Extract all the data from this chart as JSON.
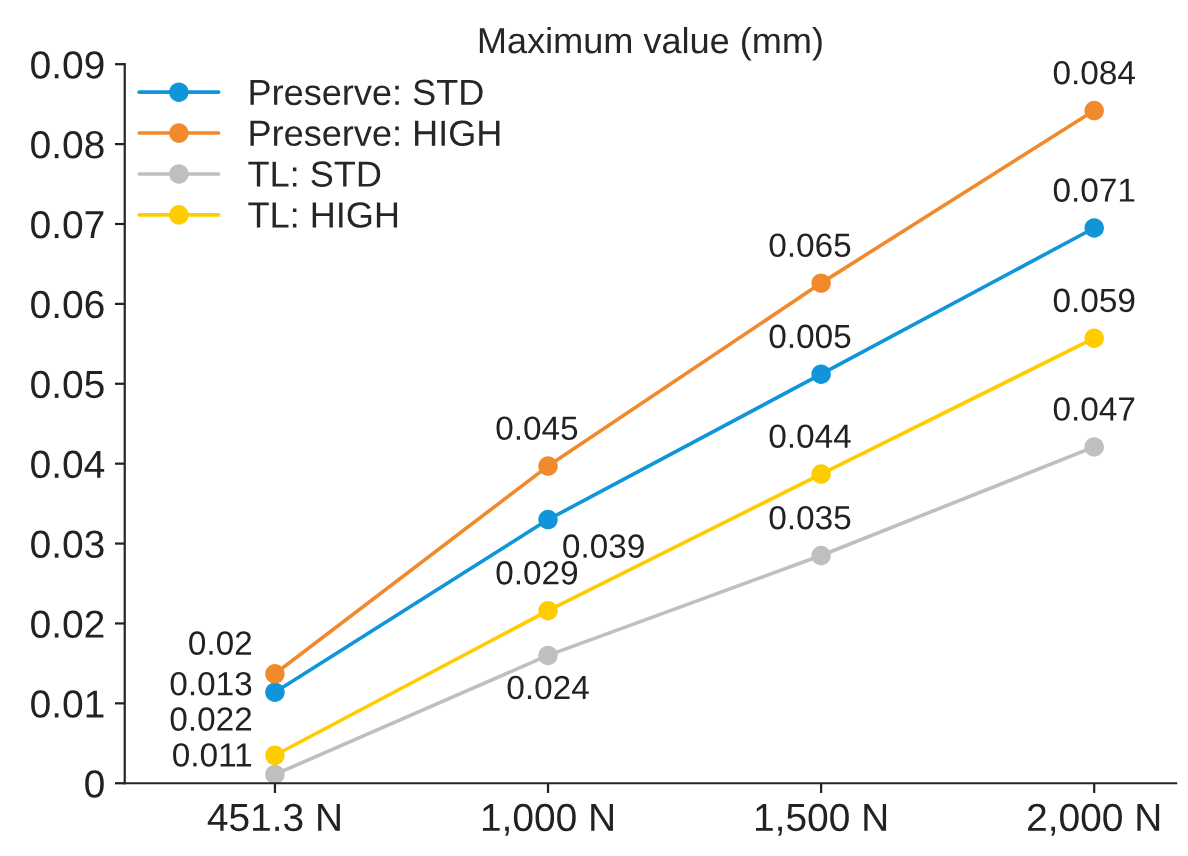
{
  "chart_data": {
    "type": "line",
    "title": "Maximum value (mm)",
    "categories": [
      "451.3 N",
      "1,000 N",
      "1,500 N",
      "2,000 N"
    ],
    "series": [
      {
        "name": "Preserve: STD",
        "color": "#0f95d8",
        "values": [
          0.0114,
          0.033,
          0.0512,
          0.0695
        ]
      },
      {
        "name": "Preserve: HIGH",
        "color": "#f08a2c",
        "values": [
          0.0137,
          0.0397,
          0.0626,
          0.0842
        ]
      },
      {
        "name": "TL: STD",
        "color": "#bfbfbf",
        "values": [
          0.0011,
          0.016,
          0.0285,
          0.0421
        ]
      },
      {
        "name": "TL: HIGH",
        "color": "#ffcc00",
        "values": [
          0.0035,
          0.0216,
          0.0387,
          0.0557
        ]
      }
    ],
    "annotations": [
      {
        "text": "0.013",
        "x": "451.3 N",
        "y": 0.0114
      },
      {
        "text": "0.039",
        "x": "1,000 N",
        "y": 0.033
      },
      {
        "text": "0.005",
        "x": "1,500 N",
        "y": 0.0512
      },
      {
        "text": "0.071",
        "x": "2,000 N",
        "y": 0.0695
      },
      {
        "text": "0.02",
        "x": "451.3 N",
        "y": 0.0137
      },
      {
        "text": "0.045",
        "x": "1,000 N",
        "y": 0.0397
      },
      {
        "text": "0.065",
        "x": "1,500 N",
        "y": 0.0626
      },
      {
        "text": "0.084",
        "x": "2,000 N",
        "y": 0.0842
      },
      {
        "text": "0.011",
        "x": "451.3 N",
        "y": 0.0011
      },
      {
        "text": "0.024",
        "x": "1,000 N",
        "y": 0.016
      },
      {
        "text": "0.035",
        "x": "1,500 N",
        "y": 0.0285
      },
      {
        "text": "0.047",
        "x": "2,000 N",
        "y": 0.0421
      },
      {
        "text": "0.022",
        "x": "451.3 N",
        "y": 0.0035
      },
      {
        "text": "0.029",
        "x": "1,000 N",
        "y": 0.0216
      },
      {
        "text": "0.044",
        "x": "1,500 N",
        "y": 0.0387
      },
      {
        "text": "0.059",
        "x": "2,000 N",
        "y": 0.0557
      }
    ],
    "ylim": [
      0,
      0.09
    ],
    "yticks": [
      0,
      0.01,
      0.02,
      0.03,
      0.04,
      0.05,
      0.06,
      0.07,
      0.08,
      0.09
    ],
    "legend": "top left",
    "marker": "circle",
    "line_style": "solid",
    "grid": false
  }
}
